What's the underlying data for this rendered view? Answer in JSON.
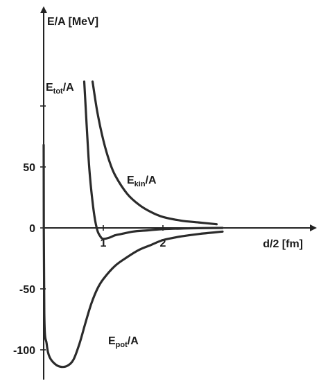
{
  "chart_data": {
    "type": "line",
    "xlabel": "d/2 [fm]",
    "ylabel": "E/A [MeV]",
    "xlim": [
      -0.75,
      2.85
    ],
    "ylim": [
      -115,
      180
    ],
    "x_ticks": [
      1,
      2
    ],
    "y_ticks": [
      -100,
      -50,
      0,
      50,
      100
    ],
    "y_tick_labels": [
      "-100",
      "-50",
      "0",
      "50",
      ""
    ],
    "series": [
      {
        "name": "E_tot/A",
        "label_main": "E",
        "label_sub": "tot",
        "label_tail": "/A",
        "x": [
          0.68,
          0.72,
          0.76,
          0.8,
          0.85,
          0.9,
          0.95,
          1.0,
          1.1,
          1.2,
          1.3,
          1.5,
          1.75,
          2.0,
          2.5,
          3.0
        ],
        "y": [
          120,
          85,
          52,
          30,
          10,
          -2,
          -7,
          -9,
          -8,
          -6,
          -5,
          -3,
          -2,
          -1,
          -0.3,
          0
        ]
      },
      {
        "name": "E_kin/A",
        "label_main": "E",
        "label_sub": "kin",
        "label_tail": "/A",
        "x": [
          0.82,
          0.9,
          1.0,
          1.1,
          1.2,
          1.4,
          1.6,
          1.8,
          2.0,
          2.3,
          2.6,
          2.9
        ],
        "y": [
          120,
          95,
          72,
          55,
          43,
          28,
          19,
          13,
          9,
          6,
          4.5,
          3
        ]
      },
      {
        "name": "E_pot/A",
        "label_main": "E",
        "label_sub": "pot",
        "label_tail": "/A",
        "x": [
          0.0,
          0.01,
          0.05,
          0.1,
          0.2,
          0.3,
          0.4,
          0.5,
          0.6,
          0.7,
          0.8,
          0.9,
          1.0,
          1.2,
          1.4,
          1.6,
          1.8,
          2.0,
          2.3,
          2.6,
          3.0
        ],
        "y": [
          68,
          -70,
          -95,
          -106,
          -112,
          -114,
          -113,
          -108,
          -95,
          -78,
          -62,
          -50,
          -42,
          -31,
          -24,
          -18,
          -14,
          -10,
          -7,
          -5,
          -3
        ]
      }
    ]
  }
}
